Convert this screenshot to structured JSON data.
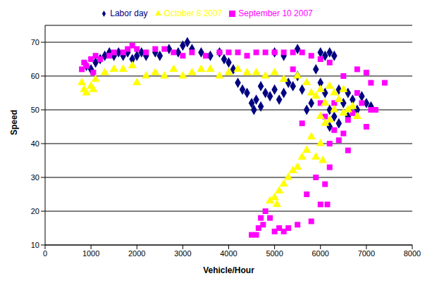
{
  "chart_data": {
    "type": "scatter",
    "x_label": "Vehicle/Hour",
    "y_label": "Speed",
    "xlim": [
      0,
      8000
    ],
    "xticks": [
      0,
      1000,
      2000,
      3000,
      4000,
      5000,
      6000,
      7000,
      8000
    ],
    "ylim": [
      10,
      75
    ],
    "yticks": [
      10,
      20,
      30,
      40,
      50,
      60,
      70
    ],
    "grid": true,
    "legend": "top",
    "series": [
      {
        "name": "Labor day",
        "color": "#000080",
        "marker": "diamond",
        "x": [
          900,
          1000,
          1100,
          1200,
          1300,
          1400,
          1500,
          1600,
          1700,
          1800,
          1900,
          2000,
          2100,
          2200,
          2400,
          2500,
          2700,
          2900,
          3000,
          3100,
          3200,
          3400,
          3600,
          3800,
          3900,
          4000,
          4100,
          4200,
          4300,
          4400,
          4500,
          4550,
          4600,
          4700,
          4700,
          4800,
          4900,
          5000,
          5100,
          5200,
          5300,
          5400,
          5500,
          5600,
          5700,
          5800,
          5900,
          6000,
          6100,
          6200,
          6300,
          6000,
          6100,
          6200,
          6300,
          6400,
          6500,
          6600,
          6700,
          6800,
          6900,
          7000,
          7100,
          6200,
          6400,
          6600,
          5000,
          5200,
          5500
        ],
        "values": [
          63,
          62,
          64,
          65,
          66,
          67,
          66,
          67,
          66,
          67,
          65,
          66,
          67,
          66,
          67,
          66,
          68,
          67,
          69,
          70,
          68,
          67,
          66,
          67,
          65,
          64,
          62,
          58,
          56,
          55,
          52,
          50,
          53,
          51,
          57,
          55,
          54,
          56,
          53,
          55,
          58,
          57,
          60,
          56,
          50,
          52,
          62,
          67,
          66,
          67,
          66,
          58,
          55,
          50,
          48,
          46,
          52,
          55,
          53,
          50,
          54,
          52,
          51,
          45,
          56,
          48,
          67,
          66,
          68
        ]
      },
      {
        "name": "September 10 2007",
        "color": "#ff00ff",
        "marker": "square",
        "x": [
          800,
          850,
          900,
          1000,
          1050,
          1100,
          1200,
          1400,
          1500,
          1700,
          1800,
          1900,
          2000,
          2200,
          2400,
          2600,
          2800,
          3000,
          3200,
          3500,
          3800,
          4000,
          4200,
          4400,
          4600,
          4800,
          5000,
          5200,
          5400,
          5600,
          5800,
          6000,
          6200,
          6500,
          6800,
          7000,
          7100,
          7400,
          7100,
          7000,
          6900,
          6700,
          6600,
          6500,
          6400,
          6300,
          6200,
          6100,
          6000,
          6300,
          6800,
          7200,
          6600,
          6200,
          6100,
          6000,
          6150,
          5900,
          5800,
          5700,
          5500,
          5300,
          5200,
          5100,
          5000,
          4900,
          4800,
          4750,
          4700,
          4600,
          4500,
          4650,
          5600,
          5400
        ],
        "values": [
          62,
          64,
          63,
          65,
          61,
          66,
          65,
          66,
          67,
          67,
          68,
          69,
          68,
          67,
          68,
          68,
          67,
          66,
          67,
          66,
          67,
          67,
          67,
          66,
          67,
          67,
          67,
          67,
          67,
          67,
          66,
          65,
          64,
          60,
          62,
          61,
          58,
          58,
          50,
          45,
          52,
          49,
          47,
          43,
          41,
          44,
          40,
          48,
          52,
          52,
          55,
          50,
          38,
          33,
          28,
          22,
          22,
          30,
          17,
          25,
          16,
          15,
          14,
          15,
          14,
          18,
          20,
          16,
          18,
          13,
          13,
          15,
          46,
          62
        ]
      },
      {
        "name": "October 8 2007",
        "color": "#ffff00",
        "marker": "triangle",
        "x": [
          800,
          850,
          900,
          1000,
          1050,
          1100,
          1300,
          1500,
          1700,
          1900,
          2000,
          2200,
          2400,
          2600,
          2800,
          3000,
          3200,
          3400,
          3600,
          3800,
          4000,
          4200,
          4400,
          4600,
          4800,
          5000,
          5200,
          5500,
          5700,
          5800,
          5900,
          6000,
          6100,
          6000,
          6200,
          6300,
          6400,
          6500,
          6600,
          6700,
          6800,
          6200,
          6100,
          6300,
          6000,
          5900,
          5800,
          5700,
          5600,
          5500,
          5400,
          5300,
          5200,
          5100,
          5000,
          4900,
          5050,
          6050,
          6500
        ],
        "values": [
          58,
          56,
          55,
          57,
          56,
          59,
          61,
          62,
          62,
          63,
          58,
          60,
          61,
          60,
          62,
          60,
          61,
          62,
          62,
          60,
          61,
          62,
          61,
          61,
          60,
          61,
          59,
          60,
          58,
          55,
          54,
          56,
          52,
          48,
          47,
          50,
          53,
          49,
          50,
          51,
          48,
          57,
          46,
          55,
          40,
          36,
          42,
          38,
          36,
          33,
          32,
          30,
          28,
          26,
          24,
          23,
          22,
          35,
          56
        ]
      }
    ]
  }
}
